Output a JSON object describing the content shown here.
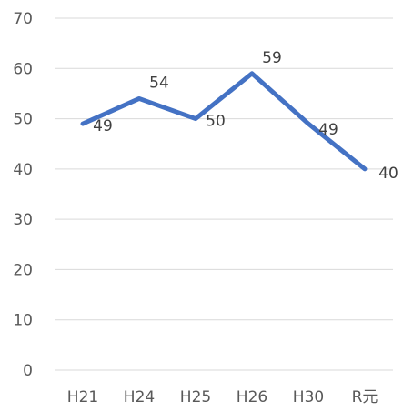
{
  "chart_data": {
    "type": "line",
    "categories": [
      "H21",
      "H24",
      "H25",
      "H26",
      "H30",
      "R元"
    ],
    "series": [
      {
        "values": [
          49,
          54,
          50,
          59,
          49,
          40
        ],
        "color": "#4472c4"
      }
    ],
    "ylim": [
      0,
      70
    ],
    "yticks": [
      0,
      10,
      20,
      30,
      40,
      50,
      60,
      70
    ],
    "grid": true,
    "legend": "none",
    "data_labels": true
  }
}
